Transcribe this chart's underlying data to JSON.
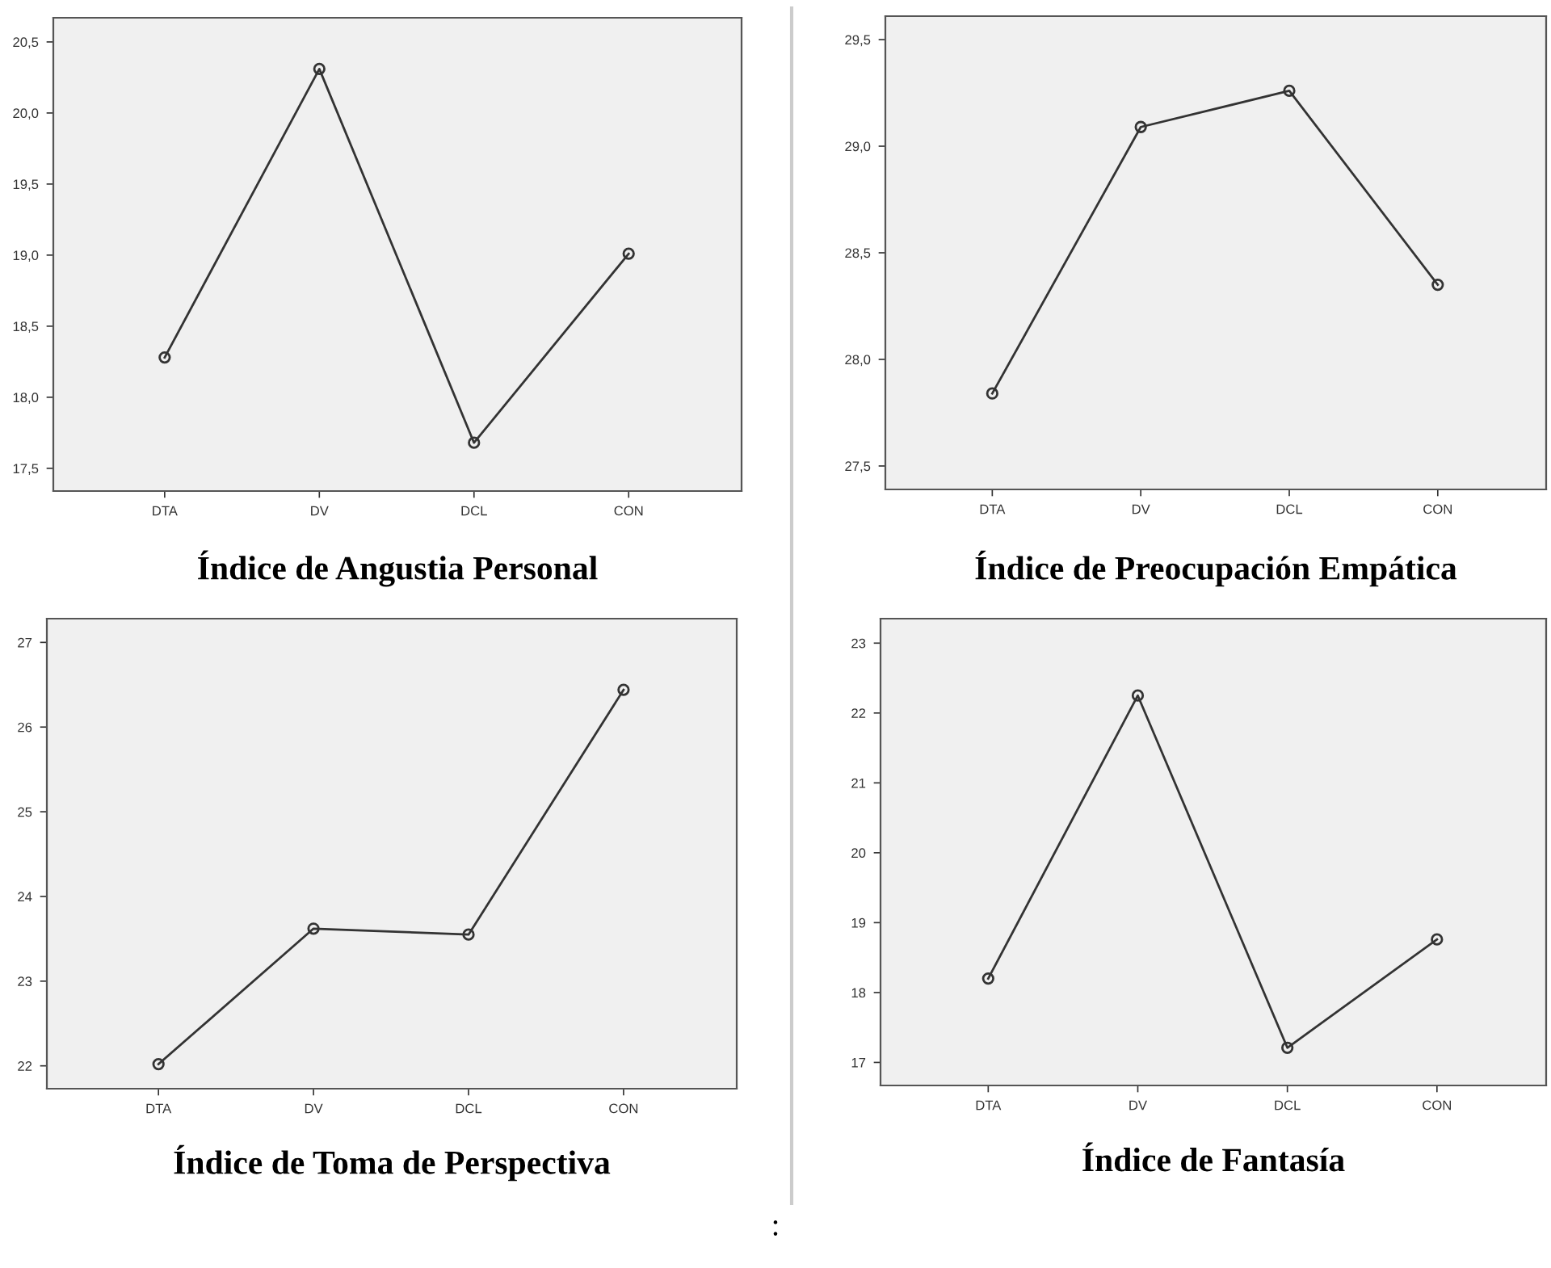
{
  "chart_data": [
    {
      "type": "line",
      "title": "Índice de Angustia Personal",
      "categories": [
        "DTA",
        "DV",
        "DCL",
        "CON"
      ],
      "values": [
        18.28,
        20.31,
        17.68,
        19.01
      ],
      "color": "#333333",
      "marker": "circle",
      "line_style": "solid",
      "ylim": [
        17.34,
        20.67
      ],
      "yticks": [
        {
          "value": 17.5,
          "label": "17,5"
        },
        {
          "value": 18.0,
          "label": "18,0"
        },
        {
          "value": 18.5,
          "label": "18,5"
        },
        {
          "value": 19.0,
          "label": "19,0"
        },
        {
          "value": 19.5,
          "label": "19,5"
        },
        {
          "value": 20.0,
          "label": "20,0"
        },
        {
          "value": 20.5,
          "label": "20,5"
        }
      ],
      "grid": false
    },
    {
      "type": "line",
      "title": "Índice de Preocupación Empática",
      "categories": [
        "DTA",
        "DV",
        "DCL",
        "CON"
      ],
      "values": [
        27.84,
        29.09,
        29.26,
        28.35
      ],
      "color": "#333333",
      "marker": "circle",
      "line_style": "solid",
      "ylim": [
        27.39,
        29.61
      ],
      "yticks": [
        {
          "value": 27.5,
          "label": "27,5"
        },
        {
          "value": 28.0,
          "label": "28,0"
        },
        {
          "value": 28.5,
          "label": "28,5"
        },
        {
          "value": 29.0,
          "label": "29,0"
        },
        {
          "value": 29.5,
          "label": "29,5"
        }
      ],
      "grid": false
    },
    {
      "type": "line",
      "title": "Índice de Toma de Perspectiva",
      "categories": [
        "DTA",
        "DV",
        "DCL",
        "CON"
      ],
      "values": [
        22.02,
        23.62,
        23.55,
        26.44
      ],
      "color": "#333333",
      "marker": "circle",
      "line_style": "solid",
      "ylim": [
        21.73,
        27.28
      ],
      "yticks": [
        22,
        23,
        24,
        25,
        26,
        27
      ],
      "grid": false
    },
    {
      "type": "line",
      "title": "Índice de Fantasía",
      "categories": [
        "DTA",
        "DV",
        "DCL",
        "CON"
      ],
      "values": [
        18.2,
        22.25,
        17.21,
        18.76
      ],
      "color": "#333333",
      "marker": "circle",
      "line_style": "solid",
      "ylim": [
        16.67,
        23.35
      ],
      "yticks": [
        17,
        18,
        19,
        20,
        21,
        22,
        23
      ],
      "grid": false,
      "annotations": [
        ":"
      ]
    }
  ]
}
